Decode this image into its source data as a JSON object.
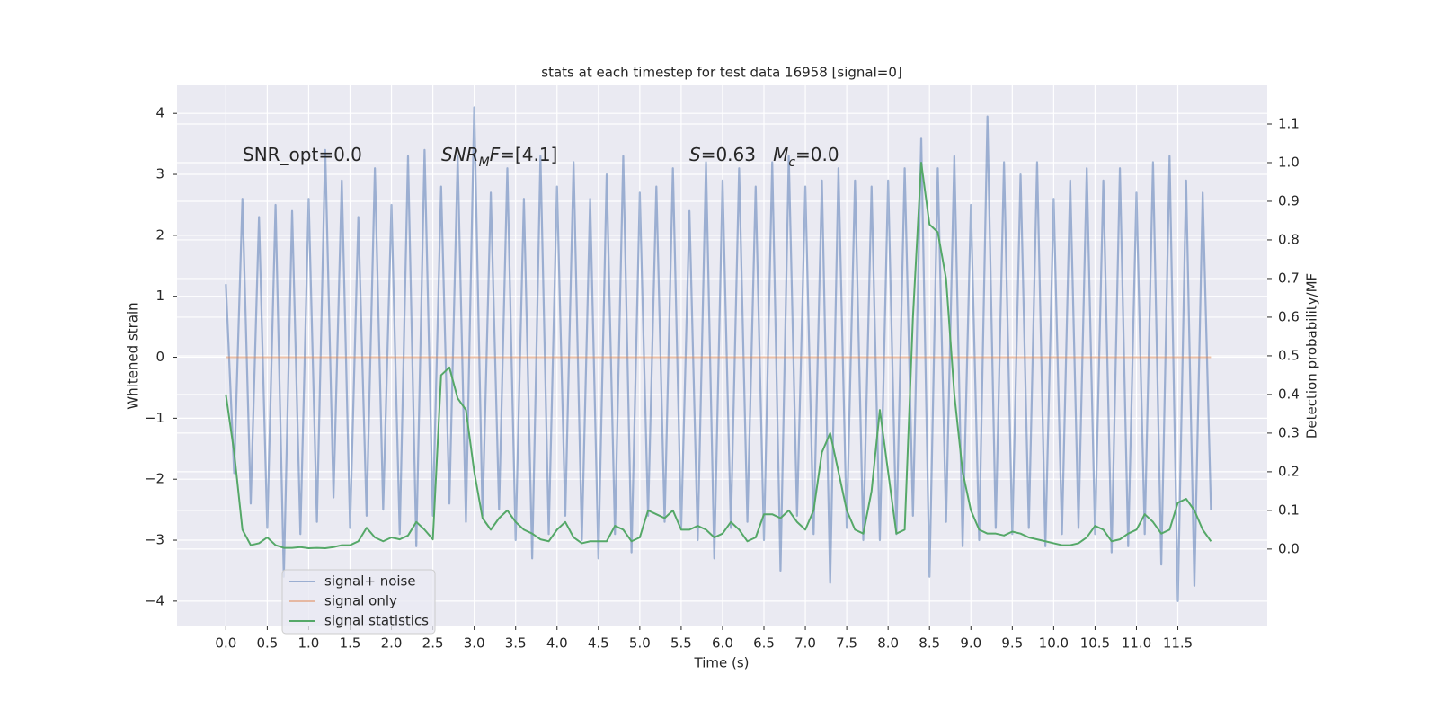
{
  "chart_data": {
    "type": "line",
    "title": "stats at each timestep for test data 16958 [signal=0]",
    "xlabel": "Time (s)",
    "ylabel": "Whitened strain",
    "y2label": "Detection probability/MF",
    "grid": true,
    "legend": "lower left",
    "annotations": [
      [
        {
          "text": "SNR_opt=0.0"
        }
      ],
      [
        {
          "text": "SNR",
          "italic": true
        },
        {
          "text": "M",
          "italic": true,
          "sub": true
        },
        {
          "text": "F",
          "italic": true
        },
        {
          "text": "=[4.1]"
        }
      ],
      [
        {
          "text": "S",
          "italic": true
        },
        {
          "text": "=0.63   "
        },
        {
          "text": "M",
          "italic": true
        },
        {
          "text": "c",
          "italic": true,
          "sub": true
        },
        {
          "text": "=0.0"
        }
      ]
    ],
    "x": [
      0,
      0.1,
      0.2,
      0.3,
      0.4,
      0.5,
      0.6,
      0.7,
      0.8,
      0.9,
      1,
      1.1,
      1.2,
      1.3,
      1.4,
      1.5,
      1.6,
      1.7,
      1.8,
      1.9,
      2,
      2.1,
      2.2,
      2.3,
      2.4,
      2.5,
      2.6,
      2.7,
      2.8,
      2.9,
      3,
      3.1,
      3.2,
      3.3,
      3.4,
      3.5,
      3.6,
      3.7,
      3.8,
      3.9,
      4,
      4.1,
      4.2,
      4.3,
      4.4,
      4.5,
      4.6,
      4.7,
      4.8,
      4.9,
      5,
      5.1,
      5.2,
      5.3,
      5.4,
      5.5,
      5.6,
      5.7,
      5.8,
      5.9,
      6,
      6.1,
      6.2,
      6.3,
      6.4,
      6.5,
      6.6,
      6.7,
      6.8,
      6.9,
      7,
      7.1,
      7.2,
      7.3,
      7.4,
      7.5,
      7.6,
      7.7,
      7.8,
      7.9,
      8,
      8.1,
      8.2,
      8.3,
      8.4,
      8.5,
      8.6,
      8.7,
      8.8,
      8.9,
      9,
      9.1,
      9.2,
      9.3,
      9.4,
      9.5,
      9.6,
      9.7,
      9.8,
      9.9,
      10,
      10.1,
      10.2,
      10.3,
      10.4,
      10.5,
      10.6,
      10.7,
      10.8,
      10.9,
      11,
      11.1,
      11.2,
      11.3,
      11.4,
      11.5,
      11.6,
      11.7,
      11.8,
      11.9
    ],
    "series": [
      {
        "name": "signal+ noise",
        "color": "#4c72b0",
        "opacity": 0.5,
        "values": [
          1.2,
          -1.9,
          2.6,
          -2.4,
          2.3,
          -2.8,
          2.5,
          -3.6,
          2.4,
          -2.9,
          2.6,
          -2.7,
          3.4,
          -2.3,
          2.9,
          -2.8,
          2.3,
          -2.6,
          3.1,
          -2.5,
          2.5,
          -2.9,
          3.3,
          -3.1,
          3.4,
          -2.6,
          2.8,
          -2.4,
          3.3,
          -2.7,
          4.1,
          -2.6,
          2.7,
          -2.5,
          3.1,
          -3.0,
          2.6,
          -3.3,
          3.3,
          -2.9,
          2.8,
          -2.6,
          3.2,
          -3.0,
          2.6,
          -3.3,
          3.0,
          -2.9,
          3.3,
          -3.2,
          2.7,
          -2.6,
          2.8,
          -2.7,
          3.1,
          -2.8,
          2.4,
          -3.0,
          3.2,
          -3.3,
          2.9,
          -2.8,
          3.1,
          -2.7,
          2.8,
          -3.0,
          3.2,
          -3.5,
          3.3,
          -2.6,
          2.8,
          -2.9,
          2.9,
          -3.7,
          3.1,
          -2.8,
          2.9,
          -3.0,
          2.8,
          -3.0,
          2.9,
          -2.9,
          3.1,
          -2.6,
          3.6,
          -3.6,
          3.1,
          -2.7,
          3.3,
          -3.1,
          2.5,
          -3.0,
          3.95,
          -2.8,
          3.2,
          -2.9,
          3.0,
          -2.8,
          3.2,
          -3.1,
          2.6,
          -2.9,
          2.9,
          -2.8,
          3.1,
          -2.9,
          2.9,
          -3.2,
          3.1,
          -3.1,
          2.7,
          -2.9,
          3.2,
          -3.4,
          3.3,
          -4.0,
          2.9,
          -3.75,
          2.7,
          -2.5
        ]
      },
      {
        "name": "signal only",
        "color": "#dd8452",
        "opacity": 0.5,
        "values": [
          0,
          0,
          0,
          0,
          0,
          0,
          0,
          0,
          0,
          0,
          0,
          0,
          0,
          0,
          0,
          0,
          0,
          0,
          0,
          0,
          0,
          0,
          0,
          0,
          0,
          0,
          0,
          0,
          0,
          0,
          0,
          0,
          0,
          0,
          0,
          0,
          0,
          0,
          0,
          0,
          0,
          0,
          0,
          0,
          0,
          0,
          0,
          0,
          0,
          0,
          0,
          0,
          0,
          0,
          0,
          0,
          0,
          0,
          0,
          0,
          0,
          0,
          0,
          0,
          0,
          0,
          0,
          0,
          0,
          0,
          0,
          0,
          0,
          0,
          0,
          0,
          0,
          0,
          0,
          0,
          0,
          0,
          0,
          0,
          0,
          0,
          0,
          0,
          0,
          0,
          0,
          0,
          0,
          0,
          0,
          0,
          0,
          0,
          0,
          0,
          0,
          0,
          0,
          0,
          0,
          0,
          0,
          0,
          0,
          0,
          0,
          0,
          0,
          0,
          0,
          0,
          0,
          0,
          0,
          0
        ]
      },
      {
        "name": "signal statistics",
        "color": "#55a868",
        "opacity": 1,
        "axis": "y2",
        "values": [
          0.4,
          0.25,
          0.05,
          0.01,
          0.015,
          0.03,
          0.01,
          0.003,
          0.003,
          0.005,
          0.002,
          0.003,
          0.002,
          0.005,
          0.01,
          0.01,
          0.02,
          0.055,
          0.03,
          0.02,
          0.03,
          0.025,
          0.035,
          0.07,
          0.05,
          0.025,
          0.45,
          0.47,
          0.39,
          0.36,
          0.2,
          0.08,
          0.05,
          0.08,
          0.1,
          0.07,
          0.05,
          0.04,
          0.025,
          0.02,
          0.05,
          0.07,
          0.03,
          0.015,
          0.02,
          0.02,
          0.02,
          0.06,
          0.05,
          0.02,
          0.03,
          0.1,
          0.09,
          0.08,
          0.1,
          0.05,
          0.05,
          0.06,
          0.05,
          0.03,
          0.04,
          0.07,
          0.05,
          0.02,
          0.03,
          0.09,
          0.09,
          0.08,
          0.1,
          0.07,
          0.05,
          0.1,
          0.25,
          0.3,
          0.2,
          0.1,
          0.05,
          0.04,
          0.15,
          0.36,
          0.2,
          0.04,
          0.05,
          0.6,
          1.0,
          0.84,
          0.82,
          0.7,
          0.4,
          0.2,
          0.1,
          0.05,
          0.04,
          0.04,
          0.035,
          0.045,
          0.04,
          0.03,
          0.025,
          0.02,
          0.015,
          0.01,
          0.01,
          0.015,
          0.03,
          0.06,
          0.05,
          0.02,
          0.025,
          0.04,
          0.05,
          0.09,
          0.07,
          0.04,
          0.05,
          0.12,
          0.13,
          0.1,
          0.05,
          0.02
        ]
      }
    ],
    "xlim": [
      -0.59,
      12.58
    ],
    "ylim": [
      -4.4,
      4.46
    ],
    "y2lim": [
      -0.198,
      1.2
    ],
    "xticks": [
      {
        "value": 0,
        "label": "0.0"
      },
      {
        "value": 0.5,
        "label": "0.5"
      },
      {
        "value": 1,
        "label": "1.0"
      },
      {
        "value": 1.5,
        "label": "1.5"
      },
      {
        "value": 2,
        "label": "2.0"
      },
      {
        "value": 2.5,
        "label": "2.5"
      },
      {
        "value": 3,
        "label": "3.0"
      },
      {
        "value": 3.5,
        "label": "3.5"
      },
      {
        "value": 4,
        "label": "4.0"
      },
      {
        "value": 4.5,
        "label": "4.5"
      },
      {
        "value": 5,
        "label": "5.0"
      },
      {
        "value": 5.5,
        "label": "5.5"
      },
      {
        "value": 6,
        "label": "6.0"
      },
      {
        "value": 6.5,
        "label": "6.5"
      },
      {
        "value": 7,
        "label": "7.0"
      },
      {
        "value": 7.5,
        "label": "7.5"
      },
      {
        "value": 8,
        "label": "8.0"
      },
      {
        "value": 8.5,
        "label": "8.5"
      },
      {
        "value": 9,
        "label": "9.0"
      },
      {
        "value": 9.5,
        "label": "9.5"
      },
      {
        "value": 10,
        "label": "10.0"
      },
      {
        "value": 10.5,
        "label": "10.5"
      },
      {
        "value": 11,
        "label": "11.0"
      },
      {
        "value": 11.5,
        "label": "11.5"
      }
    ],
    "yticks": [
      {
        "value": -4,
        "label": "−4"
      },
      {
        "value": -3,
        "label": "−3"
      },
      {
        "value": -2,
        "label": "−2"
      },
      {
        "value": -1,
        "label": "−1"
      },
      0,
      1,
      2,
      3,
      4
    ],
    "y2ticks": [
      {
        "value": 0,
        "label": "0.0"
      },
      {
        "value": 0.1,
        "label": "0.1"
      },
      {
        "value": 0.2,
        "label": "0.2"
      },
      {
        "value": 0.3,
        "label": "0.3"
      },
      {
        "value": 0.4,
        "label": "0.4"
      },
      {
        "value": 0.5,
        "label": "0.5"
      },
      {
        "value": 0.6,
        "label": "0.6"
      },
      {
        "value": 0.7,
        "label": "0.7"
      },
      {
        "value": 0.8,
        "label": "0.8"
      },
      {
        "value": 0.9,
        "label": "0.9"
      },
      {
        "value": 1,
        "label": "1.0"
      },
      {
        "value": 1.1,
        "label": "1.1"
      }
    ]
  }
}
